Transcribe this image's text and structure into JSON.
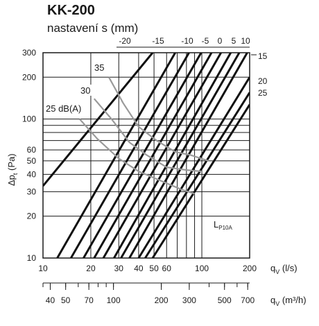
{
  "title": "KK-200",
  "subtitle": "nastavení s (mm)",
  "chart_data": {
    "type": "line",
    "title": "KK-200",
    "subtitle": "nastavení s (mm)",
    "x_scale": "log",
    "y_scale": "log",
    "xlim": [
      10,
      200
    ],
    "ylim": [
      10,
      300
    ],
    "grid": true,
    "xlabel": "q",
    "xlabel_sub": "V",
    "xlabel_unit": " (l/s)",
    "ylabel": "Δp",
    "ylabel_sub": "t",
    "ylabel_unit": " (Pa)",
    "x2label": "q",
    "x2label_sub": "V",
    "x2label_unit": " (m³/h)",
    "x_ticks": [
      {
        "value": 10,
        "label": "10"
      },
      {
        "value": 20,
        "label": "20"
      },
      {
        "value": 30,
        "label": "30"
      },
      {
        "value": 40,
        "label": "40"
      },
      {
        "value": 50,
        "label": "50"
      },
      {
        "value": 60,
        "label": "60"
      },
      {
        "value": 100,
        "label": "100"
      },
      {
        "value": 200,
        "label": "200"
      }
    ],
    "y_ticks": [
      {
        "value": 10,
        "label": "10"
      },
      {
        "value": 20,
        "label": "20"
      },
      {
        "value": 30,
        "label": "30"
      },
      {
        "value": 40,
        "label": "40"
      },
      {
        "value": 50,
        "label": "50"
      },
      {
        "value": 60,
        "label": "60"
      },
      {
        "value": 100,
        "label": "100"
      },
      {
        "value": 200,
        "label": "200"
      },
      {
        "value": 300,
        "label": "300"
      }
    ],
    "x2_ticks": [
      {
        "value": 40,
        "label": "40"
      },
      {
        "value": 50,
        "label": "50"
      },
      {
        "value": 70,
        "label": "70"
      },
      {
        "value": 100,
        "label": "100"
      },
      {
        "value": 200,
        "label": "200"
      },
      {
        "value": 300,
        "label": "300"
      },
      {
        "value": 500,
        "label": "500"
      },
      {
        "value": 700,
        "label": "700"
      }
    ],
    "settings": [
      {
        "label": "-20",
        "points": [
          [
            10,
            33
          ],
          [
            49,
            300
          ]
        ]
      },
      {
        "label": "",
        "points": [
          [
            12.3,
            10
          ],
          [
            68,
            300
          ]
        ]
      },
      {
        "label": "-15",
        "points": [
          [
            15,
            10
          ],
          [
            83,
            300
          ]
        ]
      },
      {
        "label": "",
        "points": [
          [
            18,
            10
          ],
          [
            99,
            300
          ]
        ]
      },
      {
        "label": "-10",
        "points": [
          [
            21,
            10
          ],
          [
            115,
            300
          ]
        ]
      },
      {
        "label": "-5",
        "points": [
          [
            24,
            10
          ],
          [
            132,
            300
          ]
        ]
      },
      {
        "label": "0",
        "points": [
          [
            28,
            10
          ],
          [
            152,
            300
          ]
        ]
      },
      {
        "label": "5",
        "points": [
          [
            31,
            10
          ],
          [
            172,
            300
          ]
        ]
      },
      {
        "label": "10",
        "points": [
          [
            35,
            10
          ],
          [
            193,
            300
          ]
        ]
      },
      {
        "label": "15",
        "points": [
          [
            40,
            10
          ],
          [
            200,
            200
          ]
        ]
      },
      {
        "label": "20",
        "points": [
          [
            44,
            10
          ],
          [
            200,
            155
          ]
        ]
      },
      {
        "label": "25",
        "points": [
          [
            49,
            10
          ],
          [
            200,
            127
          ]
        ]
      }
    ],
    "noise_curves": [
      {
        "label": "35",
        "points": [
          [
            26,
            200
          ],
          [
            32,
            130
          ],
          [
            40,
            88
          ],
          [
            52,
            70
          ],
          [
            68,
            58
          ],
          [
            85,
            55
          ],
          [
            110,
            50
          ]
        ]
      },
      {
        "label": "30",
        "points": [
          [
            21,
            140
          ],
          [
            27,
            100
          ],
          [
            35,
            68
          ],
          [
            45,
            55
          ],
          [
            60,
            45
          ],
          [
            80,
            43
          ],
          [
            100,
            42
          ]
        ]
      },
      {
        "label": "25 dB(A)",
        "points": [
          [
            17,
            100
          ],
          [
            22,
            72
          ],
          [
            30,
            52
          ],
          [
            40,
            42
          ],
          [
            55,
            36
          ],
          [
            75,
            31
          ],
          [
            90,
            29
          ]
        ]
      }
    ],
    "annotations": [
      {
        "text": "L",
        "sub": "P10A",
        "x": 100,
        "y": 14.8
      }
    ]
  }
}
